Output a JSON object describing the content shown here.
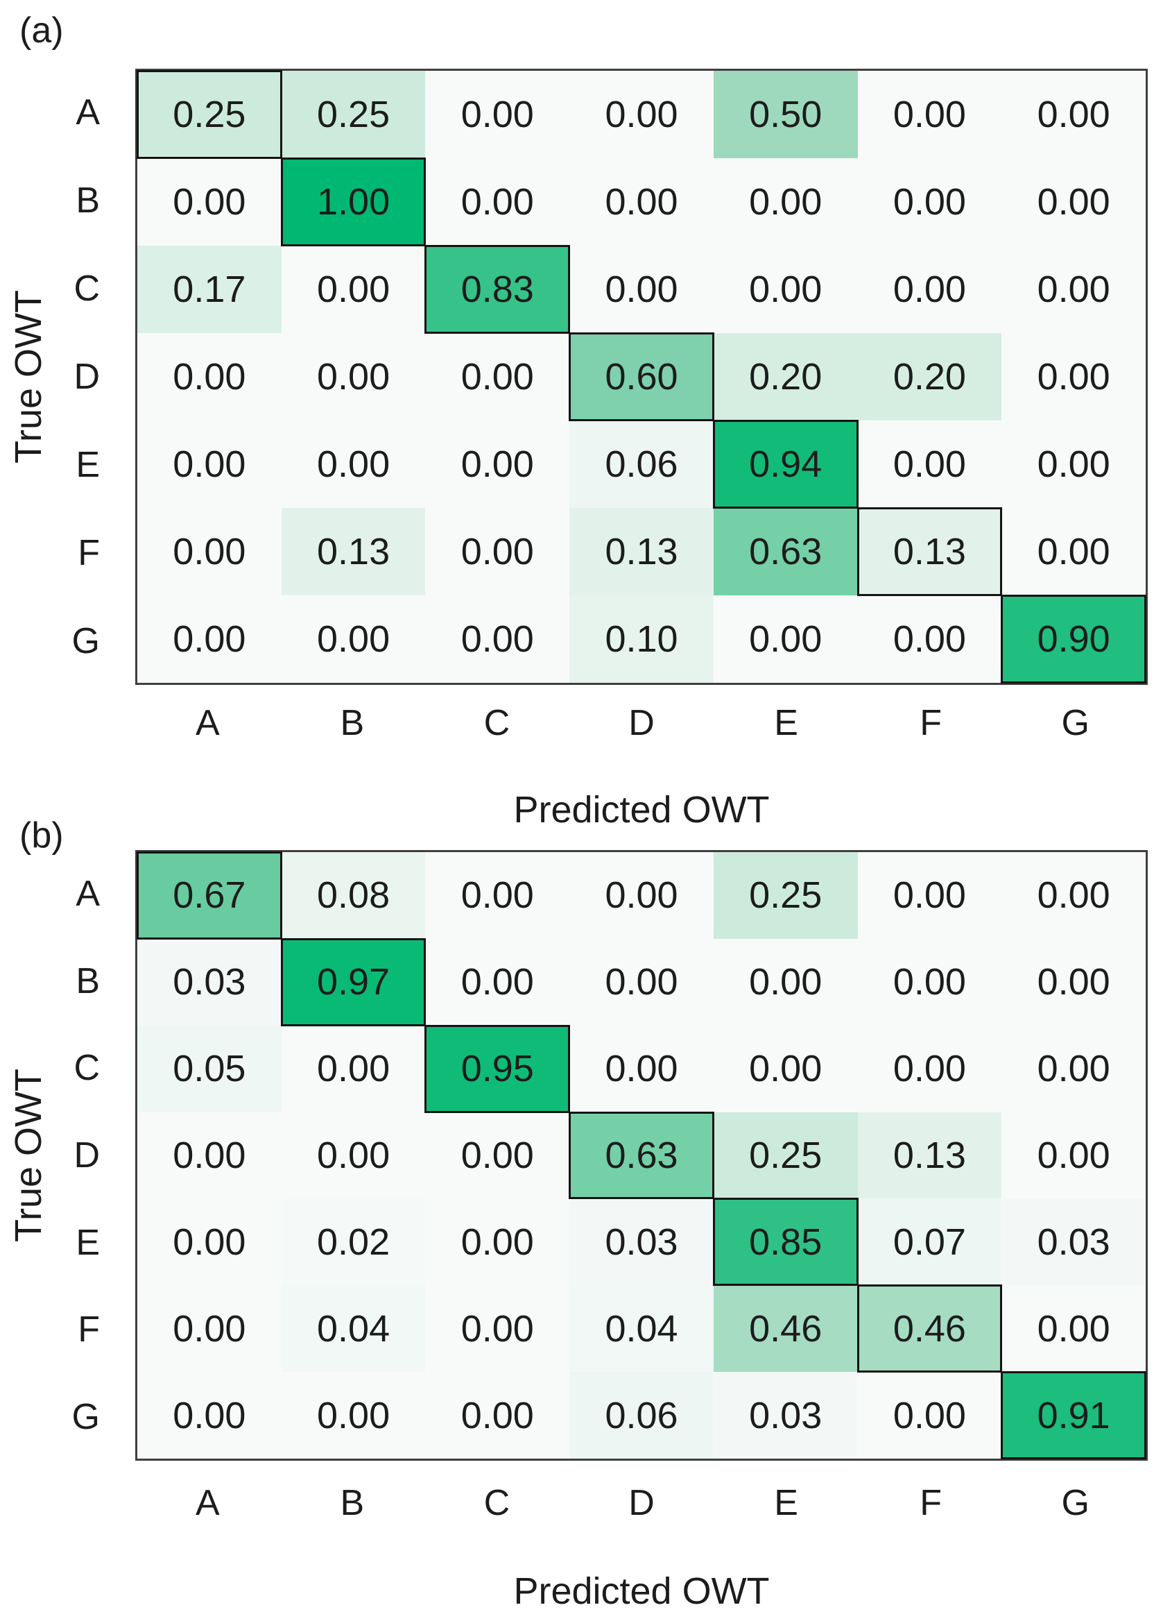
{
  "style": {
    "color_ramp": [
      {
        "t": 0,
        "color": "#f8fafa"
      },
      {
        "t": 0.25,
        "color": "#cdebdc"
      },
      {
        "t": 0.5,
        "color": "#9ed9bd"
      },
      {
        "t": 0.75,
        "color": "#4fc693"
      },
      {
        "t": 1,
        "color": "#00b871"
      }
    ],
    "outer_border_color": "#3f3f3f",
    "diagonal_border_color": "#141414",
    "text_color": "#1c1c1c",
    "background_color": "#ffffff"
  },
  "chart_data": [
    {
      "type": "heatmap",
      "title": "(a)",
      "xlabel": "Predicted OWT",
      "ylabel": "True OWT",
      "x_categories": [
        "A",
        "B",
        "C",
        "D",
        "E",
        "F",
        "G"
      ],
      "y_categories": [
        "A",
        "B",
        "C",
        "D",
        "E",
        "F",
        "G"
      ],
      "value_range": [
        0,
        1
      ],
      "value_format": "0.00",
      "colormap": "white-to-green",
      "diagonal_outlined": true,
      "legend": "none",
      "values": [
        [
          0.25,
          0.25,
          0.0,
          0.0,
          0.5,
          0.0,
          0.0
        ],
        [
          0.0,
          1.0,
          0.0,
          0.0,
          0.0,
          0.0,
          0.0
        ],
        [
          0.17,
          0.0,
          0.83,
          0.0,
          0.0,
          0.0,
          0.0
        ],
        [
          0.0,
          0.0,
          0.0,
          0.6,
          0.2,
          0.2,
          0.0
        ],
        [
          0.0,
          0.0,
          0.0,
          0.06,
          0.94,
          0.0,
          0.0
        ],
        [
          0.0,
          0.13,
          0.0,
          0.13,
          0.63,
          0.13,
          0.0
        ],
        [
          0.0,
          0.0,
          0.0,
          0.1,
          0.0,
          0.0,
          0.9
        ]
      ]
    },
    {
      "type": "heatmap",
      "title": "(b)",
      "xlabel": "Predicted OWT",
      "ylabel": "True OWT",
      "x_categories": [
        "A",
        "B",
        "C",
        "D",
        "E",
        "F",
        "G"
      ],
      "y_categories": [
        "A",
        "B",
        "C",
        "D",
        "E",
        "F",
        "G"
      ],
      "value_range": [
        0,
        1
      ],
      "value_format": "0.00",
      "colormap": "white-to-green",
      "diagonal_outlined": true,
      "legend": "none",
      "values": [
        [
          0.67,
          0.08,
          0.0,
          0.0,
          0.25,
          0.0,
          0.0
        ],
        [
          0.03,
          0.97,
          0.0,
          0.0,
          0.0,
          0.0,
          0.0
        ],
        [
          0.05,
          0.0,
          0.95,
          0.0,
          0.0,
          0.0,
          0.0
        ],
        [
          0.0,
          0.0,
          0.0,
          0.63,
          0.25,
          0.13,
          0.0
        ],
        [
          0.0,
          0.02,
          0.0,
          0.03,
          0.85,
          0.07,
          0.03
        ],
        [
          0.0,
          0.04,
          0.0,
          0.04,
          0.46,
          0.46,
          0.0
        ],
        [
          0.0,
          0.0,
          0.0,
          0.06,
          0.03,
          0.0,
          0.91
        ]
      ]
    }
  ]
}
